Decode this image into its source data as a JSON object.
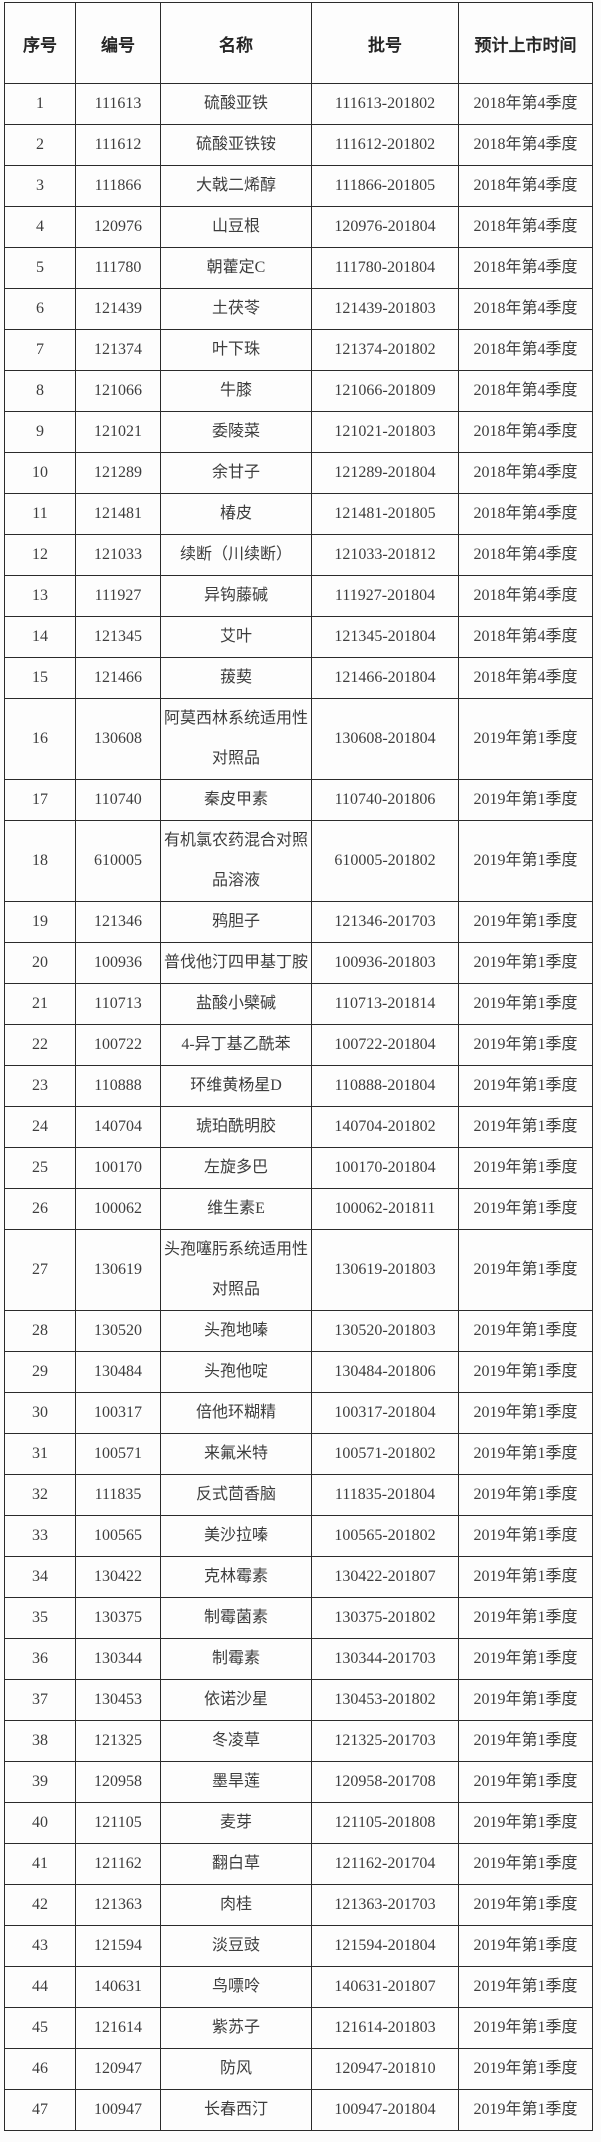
{
  "table": {
    "columns": [
      "序号",
      "编号",
      "名称",
      "批号",
      "预计上市时间"
    ],
    "column_keys": [
      "index",
      "code",
      "name",
      "batch",
      "launch-time"
    ],
    "rows": [
      [
        "1",
        "111613",
        "硫酸亚铁",
        "111613-201802",
        "2018年第4季度"
      ],
      [
        "2",
        "111612",
        "硫酸亚铁铵",
        "111612-201802",
        "2018年第4季度"
      ],
      [
        "3",
        "111866",
        "大戟二烯醇",
        "111866-201805",
        "2018年第4季度"
      ],
      [
        "4",
        "120976",
        "山豆根",
        "120976-201804",
        "2018年第4季度"
      ],
      [
        "5",
        "111780",
        "朝藿定C",
        "111780-201804",
        "2018年第4季度"
      ],
      [
        "6",
        "121439",
        "土茯苓",
        "121439-201803",
        "2018年第4季度"
      ],
      [
        "7",
        "121374",
        "叶下珠",
        "121374-201802",
        "2018年第4季度"
      ],
      [
        "8",
        "121066",
        "牛膝",
        "121066-201809",
        "2018年第4季度"
      ],
      [
        "9",
        "121021",
        "委陵菜",
        "121021-201803",
        "2018年第4季度"
      ],
      [
        "10",
        "121289",
        "余甘子",
        "121289-201804",
        "2018年第4季度"
      ],
      [
        "11",
        "121481",
        "椿皮",
        "121481-201805",
        "2018年第4季度"
      ],
      [
        "12",
        "121033",
        "续断（川续断）",
        "121033-201812",
        "2018年第4季度"
      ],
      [
        "13",
        "111927",
        "异钩藤碱",
        "111927-201804",
        "2018年第4季度"
      ],
      [
        "14",
        "121345",
        "艾叶",
        "121345-201804",
        "2018年第4季度"
      ],
      [
        "15",
        "121466",
        "菝葜",
        "121466-201804",
        "2018年第4季度"
      ],
      [
        "16",
        "130608",
        "阿莫西林系统适用性对照品",
        "130608-201804",
        "2019年第1季度"
      ],
      [
        "17",
        "110740",
        "秦皮甲素",
        "110740-201806",
        "2019年第1季度"
      ],
      [
        "18",
        "610005",
        "有机氯农药混合对照品溶液",
        "610005-201802",
        "2019年第1季度"
      ],
      [
        "19",
        "121346",
        "鸦胆子",
        "121346-201703",
        "2019年第1季度"
      ],
      [
        "20",
        "100936",
        "普伐他汀四甲基丁胺",
        "100936-201803",
        "2019年第1季度"
      ],
      [
        "21",
        "110713",
        "盐酸小檗碱",
        "110713-201814",
        "2019年第1季度"
      ],
      [
        "22",
        "100722",
        "4-异丁基乙酰苯",
        "100722-201804",
        "2019年第1季度"
      ],
      [
        "23",
        "110888",
        "环维黄杨星D",
        "110888-201804",
        "2019年第1季度"
      ],
      [
        "24",
        "140704",
        "琥珀酰明胶",
        "140704-201802",
        "2019年第1季度"
      ],
      [
        "25",
        "100170",
        "左旋多巴",
        "100170-201804",
        "2019年第1季度"
      ],
      [
        "26",
        "100062",
        "维生素E",
        "100062-201811",
        "2019年第1季度"
      ],
      [
        "27",
        "130619",
        "头孢噻肟系统适用性对照品",
        "130619-201803",
        "2019年第1季度"
      ],
      [
        "28",
        "130520",
        "头孢地嗪",
        "130520-201803",
        "2019年第1季度"
      ],
      [
        "29",
        "130484",
        "头孢他啶",
        "130484-201806",
        "2019年第1季度"
      ],
      [
        "30",
        "100317",
        "倍他环糊精",
        "100317-201804",
        "2019年第1季度"
      ],
      [
        "31",
        "100571",
        "来氟米特",
        "100571-201802",
        "2019年第1季度"
      ],
      [
        "32",
        "111835",
        "反式茴香脑",
        "111835-201804",
        "2019年第1季度"
      ],
      [
        "33",
        "100565",
        "美沙拉嗪",
        "100565-201802",
        "2019年第1季度"
      ],
      [
        "34",
        "130422",
        "克林霉素",
        "130422-201807",
        "2019年第1季度"
      ],
      [
        "35",
        "130375",
        "制霉菌素",
        "130375-201802",
        "2019年第1季度"
      ],
      [
        "36",
        "130344",
        "制霉素",
        "130344-201703",
        "2019年第1季度"
      ],
      [
        "37",
        "130453",
        "依诺沙星",
        "130453-201802",
        "2019年第1季度"
      ],
      [
        "38",
        "121325",
        "冬凌草",
        "121325-201703",
        "2019年第1季度"
      ],
      [
        "39",
        "120958",
        "墨旱莲",
        "120958-201708",
        "2019年第1季度"
      ],
      [
        "40",
        "121105",
        "麦芽",
        "121105-201808",
        "2019年第1季度"
      ],
      [
        "41",
        "121162",
        "翻白草",
        "121162-201704",
        "2019年第1季度"
      ],
      [
        "42",
        "121363",
        "肉桂",
        "121363-201703",
        "2019年第1季度"
      ],
      [
        "43",
        "121594",
        "淡豆豉",
        "121594-201804",
        "2019年第1季度"
      ],
      [
        "44",
        "140631",
        "鸟嘌呤",
        "140631-201807",
        "2019年第1季度"
      ],
      [
        "45",
        "121614",
        "紫苏子",
        "121614-201803",
        "2019年第1季度"
      ],
      [
        "46",
        "120947",
        "防风",
        "120947-201810",
        "2019年第1季度"
      ],
      [
        "47",
        "100947",
        "长春西汀",
        "100947-201804",
        "2019年第1季度"
      ]
    ]
  }
}
